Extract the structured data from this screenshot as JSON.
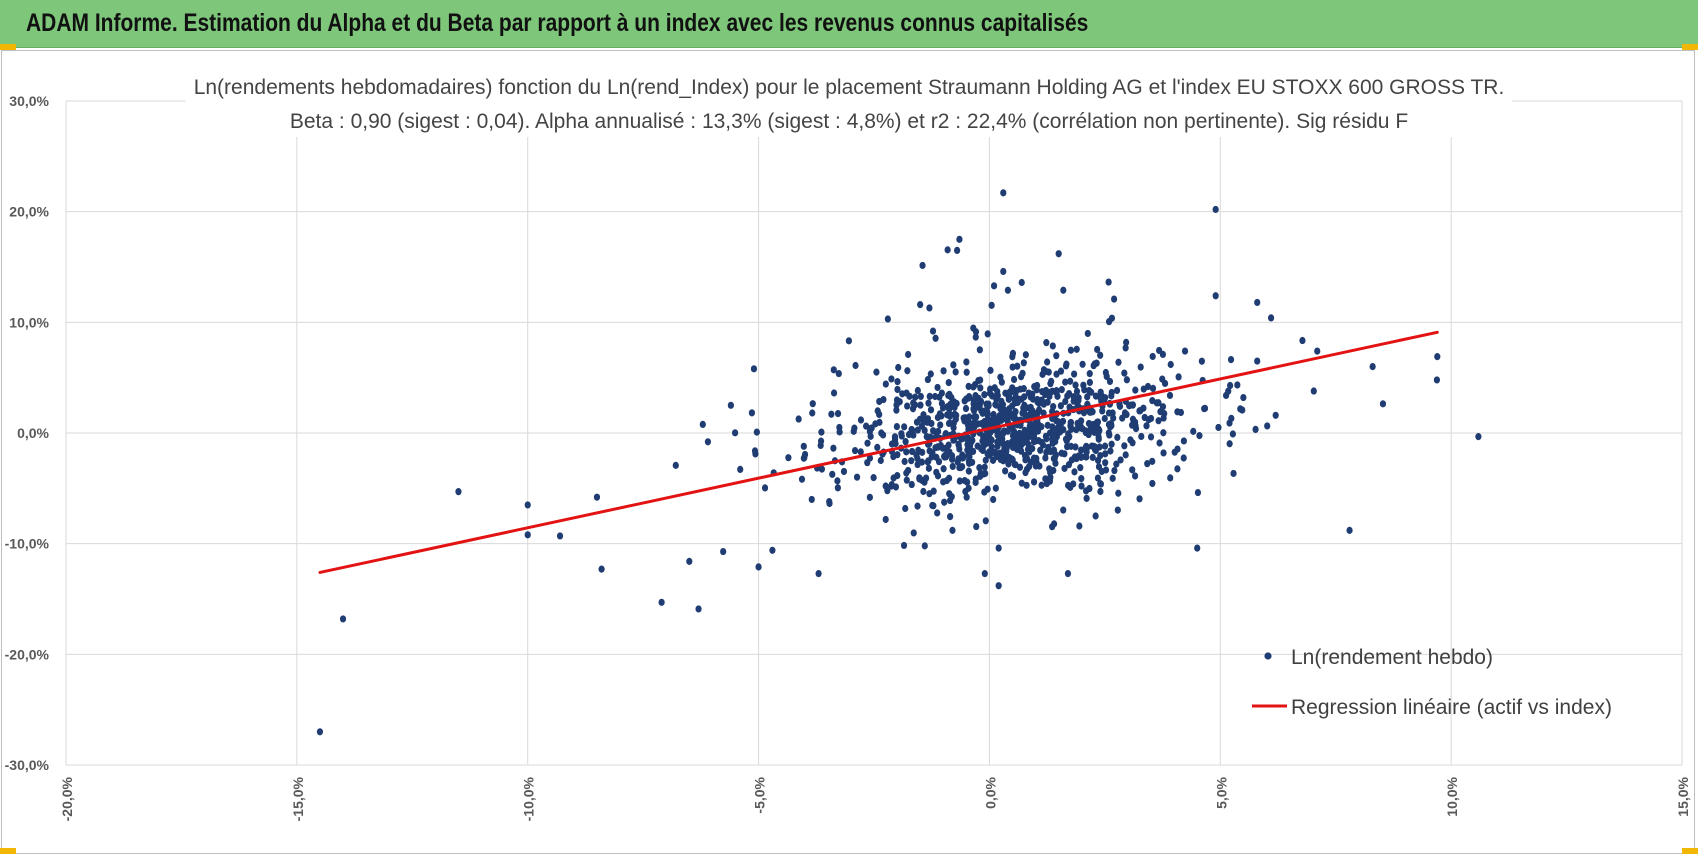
{
  "header": {
    "title": "ADAM Informe. Estimation du Alpha et du Beta par rapport à un index avec les revenus connus capitalisés"
  },
  "colors": {
    "banner": "#7dc67a",
    "points": "#1f3d73",
    "regression": "#e31313",
    "grid": "#d9d9d9",
    "corner_marks": "#f2b705"
  },
  "chart_data": {
    "type": "scatter",
    "title": "Ln(rendements hebdomadaires) fonction du Ln(rend_Index) pour le placement Straumann Holding AG et l'index EU STOXX 600 GROSS TR.",
    "subtitle": "Beta : 0,90 (sigest : 0,04). Alpha annualisé : 13,3% (sigest : 4,8%) et r2 : 22,4% (corrélation non pertinente). Sig résidu F",
    "xlabel": "",
    "ylabel": "",
    "xlim": [
      -20,
      15
    ],
    "ylim": [
      -30,
      30
    ],
    "x_ticks": [
      "-20,0%",
      "-15,0%",
      "-10,0%",
      "-5,0%",
      "0,0%",
      "5,0%",
      "10,0%",
      "15,0%"
    ],
    "y_ticks": [
      "30,0%",
      "20,0%",
      "10,0%",
      "0,0%",
      "-10,0%",
      "-20,0%",
      "-30,0%"
    ],
    "grid": true,
    "legend_position": "bottom-right",
    "series": [
      {
        "name": "Ln(rendement hebdo)",
        "kind": "scatter",
        "outliers": [
          [
            -14.5,
            -27.0
          ],
          [
            -14.0,
            -16.8
          ],
          [
            -11.5,
            -5.3
          ],
          [
            -10.0,
            -6.5
          ],
          [
            -10.0,
            -9.2
          ],
          [
            -9.3,
            -9.3
          ],
          [
            -8.5,
            -5.8
          ],
          [
            -8.4,
            -12.3
          ],
          [
            -7.1,
            -15.3
          ],
          [
            -6.3,
            -15.9
          ],
          [
            -6.5,
            -11.6
          ],
          [
            -5.0,
            -12.1
          ],
          [
            -5.1,
            5.8
          ],
          [
            -5.6,
            2.5
          ],
          [
            -4.7,
            -10.6
          ],
          [
            -3.7,
            -12.7
          ],
          [
            -2.2,
            10.3
          ],
          [
            -1.5,
            11.6
          ],
          [
            -1.3,
            11.3
          ],
          [
            -0.7,
            16.5
          ],
          [
            -0.65,
            17.5
          ],
          [
            0.3,
            21.7
          ],
          [
            0.3,
            14.6
          ],
          [
            0.1,
            13.3
          ],
          [
            0.4,
            12.9
          ],
          [
            0.7,
            13.6
          ],
          [
            1.5,
            16.2
          ],
          [
            1.6,
            12.9
          ],
          [
            2.7,
            12.1
          ],
          [
            4.9,
            20.2
          ],
          [
            4.9,
            12.4
          ],
          [
            5.8,
            11.8
          ],
          [
            6.1,
            10.4
          ],
          [
            7.1,
            7.4
          ],
          [
            8.3,
            6.0
          ],
          [
            9.7,
            6.9
          ],
          [
            7.8,
            -8.8
          ],
          [
            4.5,
            -10.4
          ],
          [
            1.7,
            -12.7
          ],
          [
            -0.1,
            -12.7
          ],
          [
            0.2,
            -13.8
          ],
          [
            6.2,
            1.6
          ],
          [
            5.8,
            6.5
          ],
          [
            5.5,
            3.2
          ],
          [
            5.2,
            0.9
          ],
          [
            -1.4,
            -10.2
          ],
          [
            -2.9,
            6.1
          ],
          [
            0.2,
            -10.4
          ],
          [
            -0.8,
            -8.8
          ],
          [
            2.3,
            -7.5
          ]
        ],
        "cloud": {
          "approx_count": 1000,
          "center": [
            0.5,
            0.5
          ],
          "std_x": 1.6,
          "std_y": 3.3,
          "beta": 0.9
        }
      },
      {
        "name": "Regression linéaire (actif vs index)",
        "kind": "line",
        "x": [
          -14.5,
          9.7
        ],
        "y": [
          -12.6,
          9.1
        ]
      }
    ]
  }
}
